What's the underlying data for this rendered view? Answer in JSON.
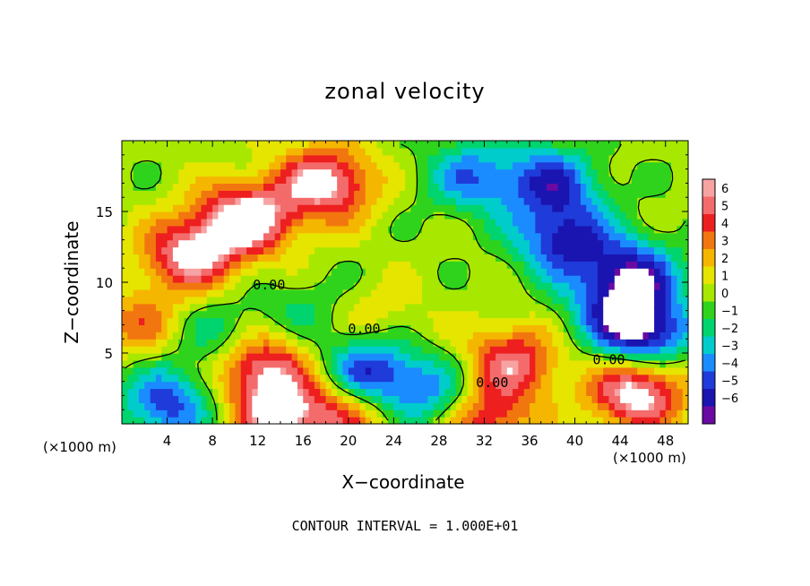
{
  "chart_data": {
    "type": "heatmap",
    "title": "zonal velocity",
    "xlabel": "X−coordinate",
    "ylabel": "Z−coordinate",
    "x_unit_label_left": "(×1000 m)",
    "x_unit_label_right": "(×1000 m)",
    "xlim": [
      0,
      50
    ],
    "ylim": [
      0,
      20
    ],
    "x_ticks": [
      4,
      8,
      12,
      16,
      20,
      24,
      28,
      32,
      36,
      40,
      44,
      48
    ],
    "x_tick_labels": [
      "4",
      "8",
      "12",
      "16",
      "20",
      "24",
      "28",
      "32",
      "36",
      "40",
      "44",
      "48"
    ],
    "y_ticks": [
      5,
      10,
      15
    ],
    "y_tick_labels": [
      "5",
      "10",
      "15"
    ],
    "colorbar": {
      "levels": [
        6,
        5,
        4,
        3,
        2,
        1,
        0,
        -1,
        -2,
        -3,
        -4,
        -5,
        -6
      ],
      "labels": [
        "6",
        "5",
        "4",
        "3",
        "2",
        "1",
        "0",
        "−1",
        "−2",
        "−3",
        "−4",
        "−5",
        "−6"
      ],
      "colors": [
        "#f7a3a3",
        "#f46b6b",
        "#ee1f1f",
        "#f2760f",
        "#f5b600",
        "#e5e500",
        "#a8e800",
        "#2fd31c",
        "#00d46e",
        "#00cccc",
        "#1a8cff",
        "#1f3bd9",
        "#1a14b0",
        "#6a0aa3"
      ]
    },
    "contour_labels": [
      {
        "text": "0.00",
        "x": 13,
        "z": 9.5
      },
      {
        "text": "0.00",
        "x": 21.4,
        "z": 6.4
      },
      {
        "text": "0.00",
        "x": 43,
        "z": 4.2
      },
      {
        "text": "0.00",
        "x": 32.7,
        "z": 2.6
      }
    ],
    "blobs": [
      {
        "x": 11,
        "z": 14.5,
        "v": 7
      },
      {
        "x": 18,
        "z": 17.0,
        "v": 6.5
      },
      {
        "x": 6,
        "z": 12.0,
        "v": 6
      },
      {
        "x": 12,
        "z": 4.2,
        "v": 6
      },
      {
        "x": 34.5,
        "z": 4.5,
        "v": 5
      },
      {
        "x": 45.5,
        "z": 2.3,
        "v": 7
      },
      {
        "x": 14,
        "z": 0.6,
        "v": 6
      },
      {
        "x": 20,
        "z": 0.8,
        "v": 4
      },
      {
        "x": 32,
        "z": 0.5,
        "v": 5
      },
      {
        "x": 1.5,
        "z": 7.0,
        "v": 3
      },
      {
        "x": 23,
        "z": 7.5,
        "v": 1.5
      },
      {
        "x": 38,
        "z": 17.0,
        "v": -5
      },
      {
        "x": 39,
        "z": 13.0,
        "v": -5.5
      },
      {
        "x": 31,
        "z": 17.5,
        "v": -4
      },
      {
        "x": 46,
        "z": 6.5,
        "v": -7
      },
      {
        "x": 45,
        "z": 10.5,
        "v": -6
      },
      {
        "x": 22,
        "z": 3.5,
        "v": -6
      },
      {
        "x": 4,
        "z": 1.5,
        "v": -5
      },
      {
        "x": 28,
        "z": 2.0,
        "v": -4
      },
      {
        "x": 9,
        "z": 6.0,
        "v": -3
      },
      {
        "x": 16,
        "z": 8.0,
        "v": -1.5
      },
      {
        "x": 42,
        "z": 8.0,
        "v": -2
      }
    ]
  },
  "footnote": "CONTOUR INTERVAL = 1.000E+01"
}
